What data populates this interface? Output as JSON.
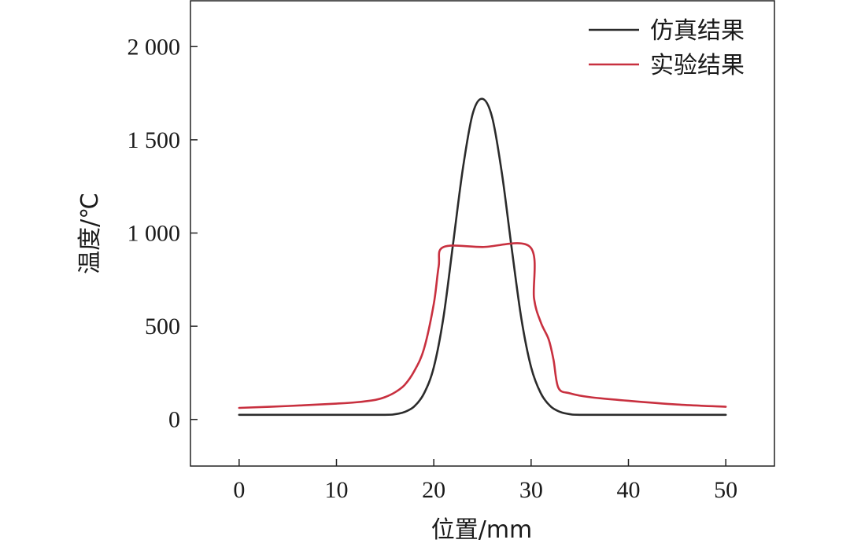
{
  "chart_data": {
    "type": "line",
    "xlabel": "位置/mm",
    "ylabel": "温度/℃",
    "xlim": [
      -5,
      55
    ],
    "ylim": [
      -250,
      2250
    ],
    "x_ticks": [
      0,
      10,
      20,
      30,
      40,
      50
    ],
    "x_tick_labels": [
      "0",
      "10",
      "20",
      "30",
      "40",
      "50"
    ],
    "y_ticks": [
      0,
      500,
      1000,
      1500,
      2000
    ],
    "y_tick_labels": [
      "0",
      "500",
      "1 000",
      "1 500",
      "2 000"
    ],
    "grid": false,
    "legend_position": "top-right",
    "series": [
      {
        "name": "仿真结果",
        "color": "#2b2b2b",
        "x": [
          0,
          5,
          10,
          15,
          16,
          17,
          18,
          19,
          20,
          21,
          22,
          23,
          24,
          25,
          26,
          27,
          28,
          29,
          30,
          31,
          32,
          33,
          34,
          35,
          40,
          45,
          50
        ],
        "y": [
          25,
          25,
          25,
          25,
          28,
          40,
          70,
          140,
          280,
          550,
          950,
          1350,
          1640,
          1720,
          1620,
          1320,
          920,
          540,
          280,
          140,
          70,
          40,
          28,
          25,
          25,
          25,
          25
        ]
      },
      {
        "name": "实验结果",
        "color": "#c8303f",
        "x": [
          0,
          5,
          10,
          12,
          14,
          15,
          16,
          17,
          18,
          19,
          20,
          20.5,
          21,
          25,
          29.9,
          30.3,
          31,
          31.8,
          32.3,
          32.8,
          34,
          36,
          40,
          45,
          50
        ],
        "y": [
          62,
          72,
          85,
          92,
          105,
          120,
          145,
          185,
          260,
          380,
          620,
          820,
          925,
          925,
          925,
          650,
          520,
          430,
          320,
          170,
          140,
          120,
          100,
          80,
          68
        ]
      }
    ]
  }
}
